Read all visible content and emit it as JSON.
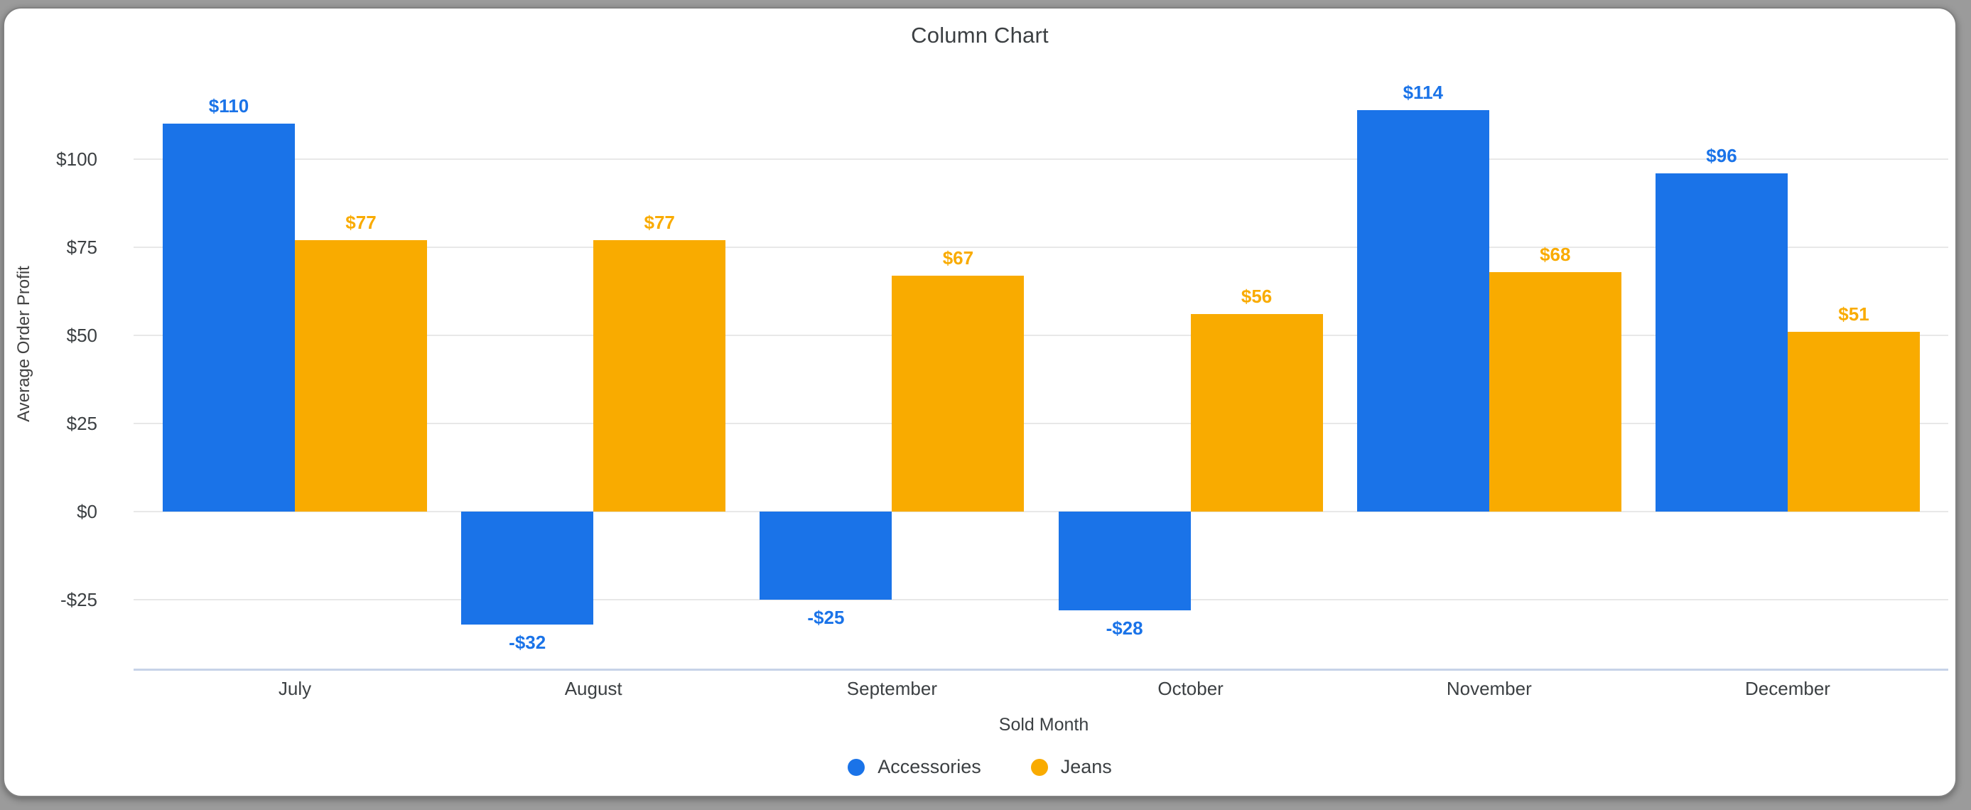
{
  "window": {
    "background_color": "#9b9b9b",
    "card_background_color": "#ffffff"
  },
  "chart_data": {
    "type": "bar",
    "title": "Column Chart",
    "xlabel": "Sold Month",
    "ylabel": "Average Order Profit",
    "categories": [
      "July",
      "August",
      "September",
      "October",
      "November",
      "December"
    ],
    "series": [
      {
        "name": "Accessories",
        "color": "#1a73e8",
        "values": [
          110,
          -32,
          -25,
          -28,
          114,
          96
        ],
        "labels": [
          "$110",
          "-$32",
          "-$25",
          "-$28",
          "$114",
          "$96"
        ]
      },
      {
        "name": "Jeans",
        "color": "#f9ab00",
        "values": [
          77,
          77,
          67,
          56,
          68,
          51
        ],
        "labels": [
          "$77",
          "$77",
          "$67",
          "$56",
          "$68",
          "$51"
        ]
      }
    ],
    "y_ticks": [
      {
        "value": 100,
        "label": "$100"
      },
      {
        "value": 75,
        "label": "$75"
      },
      {
        "value": 50,
        "label": "$50"
      },
      {
        "value": 25,
        "label": "$25"
      },
      {
        "value": 0,
        "label": "$0"
      },
      {
        "value": -25,
        "label": "-$25"
      }
    ],
    "ylim": [
      -45,
      118
    ],
    "grid": true,
    "legend_position": "bottom"
  }
}
